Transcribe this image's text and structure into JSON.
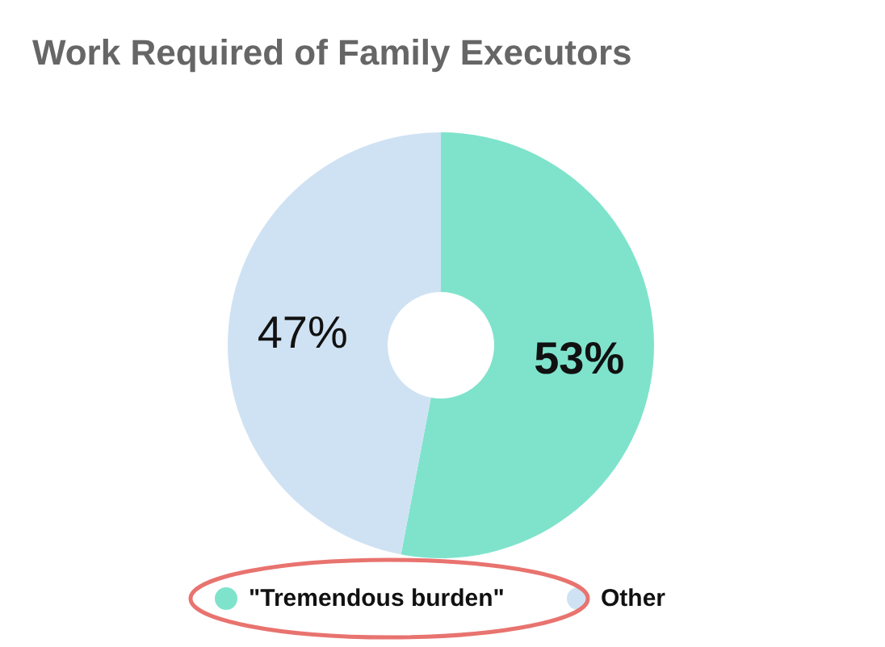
{
  "chart_data": {
    "type": "donut",
    "title": "Work Required of Family Executors",
    "categories": [
      "\"Tremendous burden\"",
      "Other"
    ],
    "values": [
      53,
      47
    ],
    "colors": [
      "#7fe3cc",
      "#cfe2f3"
    ],
    "value_labels": [
      "53%",
      "47%"
    ],
    "legend": "bottom"
  }
}
